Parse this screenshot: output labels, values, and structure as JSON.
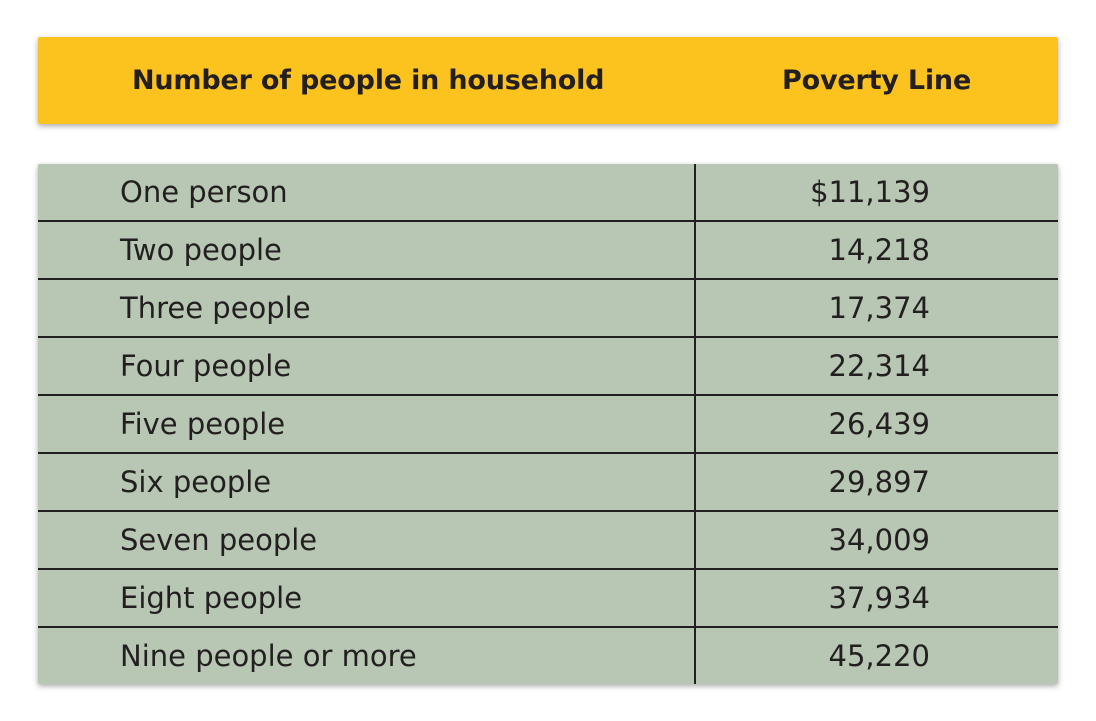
{
  "header": {
    "col_household": "Number of people in household",
    "col_poverty": "Poverty Line"
  },
  "rows": [
    {
      "label": "One person",
      "value": "$11,139"
    },
    {
      "label": "Two people",
      "value": "14,218"
    },
    {
      "label": "Three people",
      "value": "17,374"
    },
    {
      "label": "Four people",
      "value": "22,314"
    },
    {
      "label": "Five people",
      "value": "26,439"
    },
    {
      "label": "Six people",
      "value": "29,897"
    },
    {
      "label": "Seven people",
      "value": "34,009"
    },
    {
      "label": "Eight people",
      "value": "37,934"
    },
    {
      "label": "Nine people or more",
      "value": "45,220"
    }
  ],
  "colors": {
    "header_bg": "#fcc21d",
    "table_bg": "#b7c7b4",
    "text": "#231f20"
  }
}
